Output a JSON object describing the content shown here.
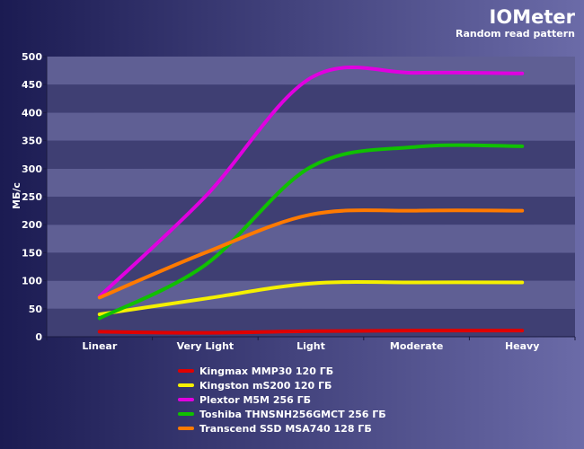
{
  "chart_data": {
    "type": "line",
    "title": "IOMeter",
    "subtitle": "Random read pattern",
    "xlabel": "",
    "ylabel": "МБ/с",
    "categories": [
      "Linear",
      "Very Light",
      "Light",
      "Moderate",
      "Heavy"
    ],
    "ylim": [
      0,
      500
    ],
    "yticks": [
      0,
      50,
      100,
      150,
      200,
      250,
      300,
      350,
      400,
      450,
      500
    ],
    "grid": "horizontal bands",
    "legend_position": "bottom",
    "series": [
      {
        "name": "Kingmax MMP30 120 ГБ",
        "color": "#e00000",
        "values": [
          9,
          7,
          10,
          11,
          11
        ]
      },
      {
        "name": "Kingston mS200 120 ГБ",
        "color": "#f5f000",
        "values": [
          40,
          68,
          95,
          97,
          97
        ]
      },
      {
        "name": "Plextor M5M 256 ГБ",
        "color": "#e000e0",
        "values": [
          72,
          250,
          462,
          471,
          470
        ]
      },
      {
        "name": "Toshiba THNSNH256GMCT 256 ГБ",
        "color": "#10c000",
        "values": [
          33,
          128,
          303,
          339,
          340
        ]
      },
      {
        "name": "Transcend SSD MSA740 128 ГБ",
        "color": "#ff7a00",
        "values": [
          70,
          150,
          218,
          225,
          225
        ]
      }
    ]
  },
  "colors": {
    "background_left": "#1b1b52",
    "background_right": "#6b6ba8",
    "plot_band_dark": "#3f3f73",
    "plot_band_light": "#5f5f94",
    "text": "#ffffff"
  }
}
